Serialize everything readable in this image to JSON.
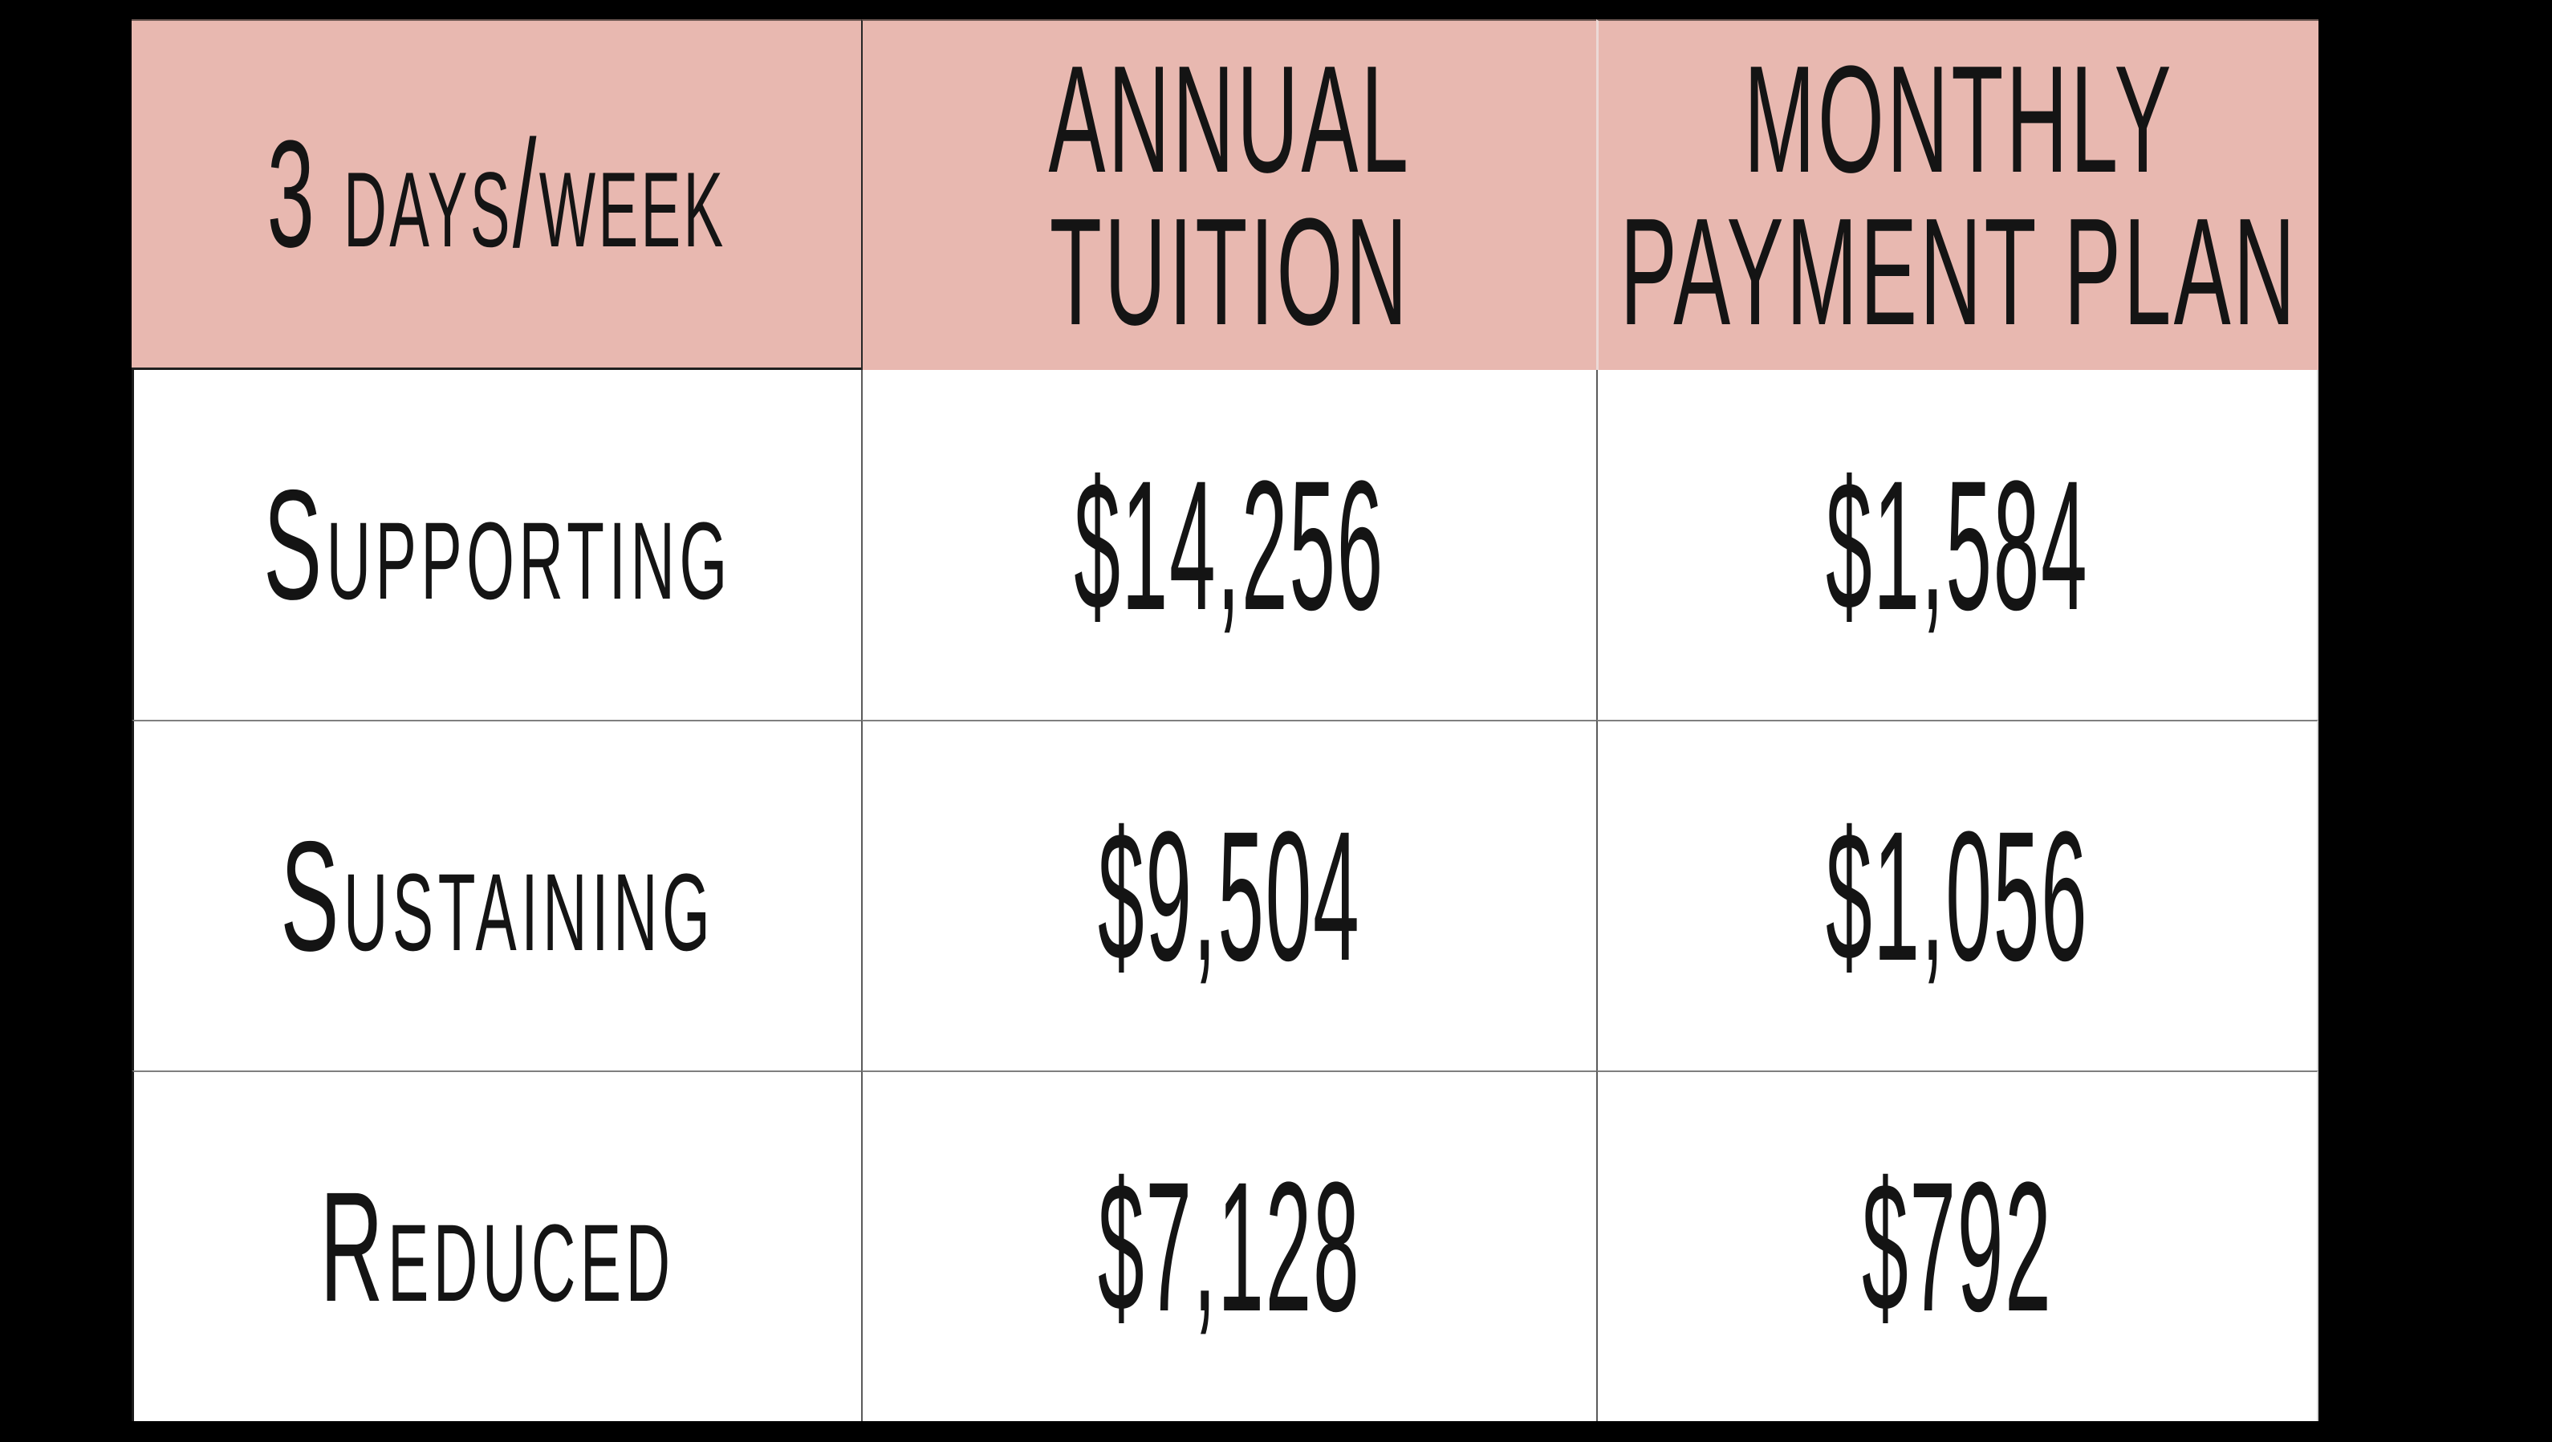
{
  "canvas": {
    "background_color": "#000000"
  },
  "table": {
    "accent_color": "#e8b8b0",
    "text_color": "#141414",
    "gridline_color": "#5a5a5a",
    "header": {
      "schedule": "3 days/week",
      "annual_line1": "ANNUAL",
      "annual_line2": "TUITION",
      "monthly_line1": "MONTHLY",
      "monthly_line2": "PAYMENT PLAN"
    },
    "rows": [
      {
        "tier": "Supporting",
        "annual": "$14,256",
        "monthly": "$1,584"
      },
      {
        "tier": "Sustaining",
        "annual": "$9,504",
        "monthly": "$1,056"
      },
      {
        "tier": "Reduced",
        "annual": "$7,128",
        "monthly": "$792"
      }
    ]
  },
  "chart_data": {
    "type": "table",
    "title": "3 days/week tuition rates",
    "columns": [
      "3 DAYS/WEEK",
      "ANNUAL TUITION",
      "MONTHLY PAYMENT PLAN"
    ],
    "rows": [
      [
        "Supporting",
        "$14,256",
        "$1,584"
      ],
      [
        "Sustaining",
        "$9,504",
        "$1,056"
      ],
      [
        "Reduced",
        "$7,128",
        "$792"
      ]
    ],
    "annual_tuition_values": [
      14256,
      9504,
      7128
    ],
    "monthly_payment_values": [
      1584,
      1056,
      792
    ],
    "header_background": "#e8b8b0",
    "body_background": "#ffffff",
    "page_background": "#000000"
  }
}
